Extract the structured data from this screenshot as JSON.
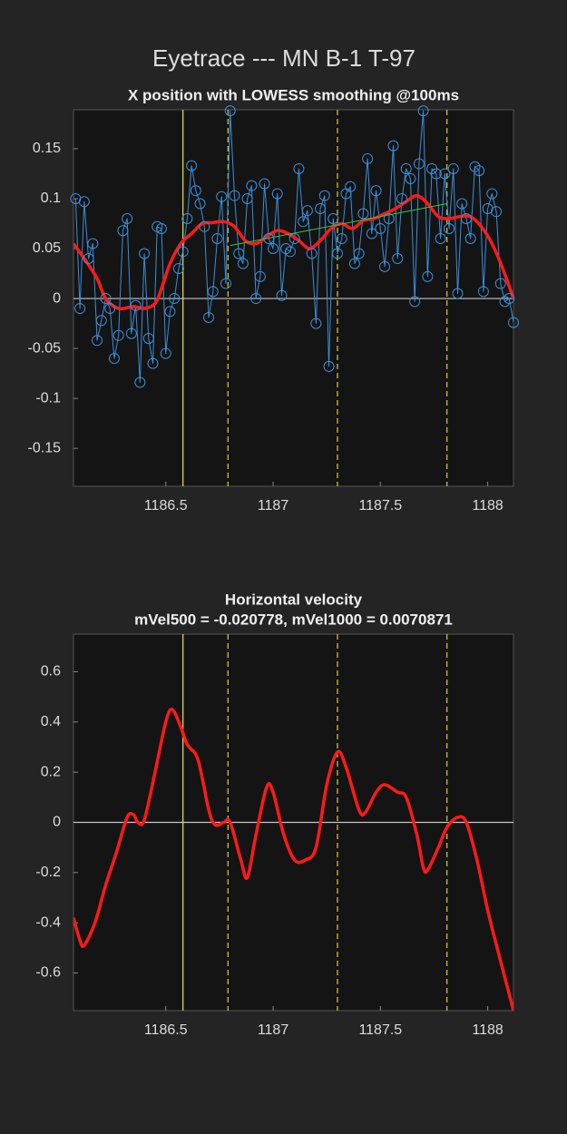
{
  "title": "Eyetrace --- MN B-1 T-97",
  "chart_data": [
    {
      "type": "line",
      "title": "X position with LOWESS smoothing @100ms",
      "xlim": [
        1186.07,
        1188.12
      ],
      "ylim": [
        -0.188,
        0.189
      ],
      "xticks": [
        1186.5,
        1187,
        1187.5,
        1188
      ],
      "yticks": [
        -0.15,
        -0.1,
        -0.05,
        0,
        0.05,
        0.1,
        0.15
      ],
      "hlines": [
        0
      ],
      "vlines": [
        {
          "value": 1186.58,
          "style": "solid",
          "color": "#d8d850"
        },
        {
          "value": 1186.79,
          "style": "dashed",
          "color": "#c8c040"
        },
        {
          "value": 1187.3,
          "style": "dashed",
          "color": "#c8c040"
        },
        {
          "value": 1187.81,
          "style": "dashed",
          "color": "#c8c040"
        }
      ],
      "series": [
        {
          "color": "#3a8fd9",
          "marker": "circle",
          "x": [
            1186.08,
            1186.1,
            1186.12,
            1186.14,
            1186.16,
            1186.18,
            1186.2,
            1186.22,
            1186.24,
            1186.26,
            1186.28,
            1186.3,
            1186.32,
            1186.34,
            1186.36,
            1186.38,
            1186.4,
            1186.42,
            1186.44,
            1186.46,
            1186.48,
            1186.5,
            1186.52,
            1186.54,
            1186.56,
            1186.58,
            1186.6,
            1186.62,
            1186.64,
            1186.66,
            1186.68,
            1186.7,
            1186.72,
            1186.74,
            1186.76,
            1186.78,
            1186.8,
            1186.82,
            1186.84,
            1186.86,
            1186.88,
            1186.9,
            1186.92,
            1186.94,
            1186.96,
            1186.98,
            1187,
            1187.02,
            1187.04,
            1187.06,
            1187.08,
            1187.1,
            1187.12,
            1187.14,
            1187.16,
            1187.18,
            1187.2,
            1187.22,
            1187.24,
            1187.26,
            1187.28,
            1187.3,
            1187.32,
            1187.34,
            1187.36,
            1187.38,
            1187.4,
            1187.42,
            1187.44,
            1187.46,
            1187.48,
            1187.5,
            1187.52,
            1187.54,
            1187.56,
            1187.58,
            1187.6,
            1187.62,
            1187.64,
            1187.66,
            1187.68,
            1187.7,
            1187.72,
            1187.74,
            1187.76,
            1187.78,
            1187.8,
            1187.82,
            1187.84,
            1187.86,
            1187.88,
            1187.9,
            1187.92,
            1187.94,
            1187.96,
            1187.98,
            1188,
            1188.02,
            1188.04,
            1188.06,
            1188.08,
            1188.1,
            1188.12
          ],
          "values": [
            0.1,
            -0.01,
            0.097,
            0.04,
            0.055,
            -0.042,
            -0.022,
            0,
            -0.01,
            -0.06,
            -0.037,
            0.068,
            0.08,
            -0.035,
            -0.007,
            -0.084,
            0.045,
            -0.04,
            -0.065,
            0.072,
            0.07,
            -0.055,
            -0.013,
            0,
            0.03,
            0.047,
            0.08,
            0.133,
            0.108,
            0.095,
            0.072,
            -0.019,
            0.007,
            0.06,
            0.102,
            0.015,
            0.188,
            0.103,
            0.045,
            0.035,
            0.1,
            0.113,
            0,
            0.022,
            0.115,
            0.06,
            0.05,
            0.105,
            0.003,
            0.05,
            0.047,
            0.06,
            0.13,
            0.077,
            0.088,
            0.045,
            -0.025,
            0.09,
            0.103,
            -0.068,
            0.08,
            0.045,
            0.06,
            0.105,
            0.112,
            0.035,
            0.045,
            0.085,
            0.14,
            0.065,
            0.108,
            0.07,
            0.032,
            0.08,
            0.153,
            0.04,
            0.1,
            0.13,
            0.12,
            -0.003,
            0.135,
            0.188,
            0.022,
            0.13,
            0.125,
            0.06,
            0.125,
            0.07,
            0.13,
            0.005,
            0.095,
            0.08,
            0.06,
            0.132,
            0.128,
            0.007,
            0.09,
            0.105,
            0.087,
            0.015,
            -0.003,
            0,
            -0.024
          ]
        },
        {
          "color": "#ff1a1a",
          "width": 3.5,
          "smooth": true,
          "x": [
            1186.07,
            1186.12,
            1186.18,
            1186.22,
            1186.28,
            1186.35,
            1186.4,
            1186.45,
            1186.48,
            1186.52,
            1186.57,
            1186.62,
            1186.67,
            1186.72,
            1186.77,
            1186.82,
            1186.87,
            1186.92,
            1186.97,
            1187.02,
            1187.07,
            1187.12,
            1187.17,
            1187.22,
            1187.27,
            1187.32,
            1187.37,
            1187.42,
            1187.47,
            1187.52,
            1187.57,
            1187.62,
            1187.67,
            1187.72,
            1187.77,
            1187.82,
            1187.87,
            1187.92,
            1187.97,
            1188.02,
            1188.07,
            1188.12
          ],
          "values": [
            0.055,
            0.04,
            0.02,
            0,
            -0.01,
            -0.008,
            -0.01,
            -0.005,
            0.01,
            0.035,
            0.055,
            0.065,
            0.075,
            0.076,
            0.077,
            0.072,
            0.058,
            0.055,
            0.062,
            0.068,
            0.065,
            0.058,
            0.05,
            0.058,
            0.07,
            0.075,
            0.07,
            0.078,
            0.08,
            0.085,
            0.09,
            0.097,
            0.103,
            0.095,
            0.082,
            0.08,
            0.082,
            0.082,
            0.072,
            0.055,
            0.03,
            0
          ]
        },
        {
          "color": "#2ecc40",
          "x": [
            1186.8,
            1187.81
          ],
          "values": [
            0.053,
            0.095
          ]
        }
      ]
    },
    {
      "type": "line",
      "title": "Horizontal velocity",
      "subtitle": "mVel500 = -0.020778, mVel1000 = 0.0070871",
      "xlim": [
        1186.07,
        1188.12
      ],
      "ylim": [
        -0.75,
        0.75
      ],
      "xticks": [
        1186.5,
        1187,
        1187.5,
        1188
      ],
      "yticks": [
        -0.6,
        -0.4,
        -0.2,
        0,
        0.2,
        0.4,
        0.6
      ],
      "hlines": [
        0
      ],
      "vlines": [
        {
          "value": 1186.58,
          "style": "solid",
          "color": "#d8d850"
        },
        {
          "value": 1186.79,
          "style": "dashed",
          "color": "#c8c040"
        },
        {
          "value": 1187.3,
          "style": "dashed",
          "color": "#c8c040"
        },
        {
          "value": 1187.81,
          "style": "dashed",
          "color": "#c8c040"
        }
      ],
      "series": [
        {
          "color": "#ff1a1a",
          "width": 3.5,
          "smooth": true,
          "x": [
            1186.07,
            1186.1,
            1186.12,
            1186.17,
            1186.22,
            1186.27,
            1186.32,
            1186.35,
            1186.37,
            1186.4,
            1186.45,
            1186.5,
            1186.53,
            1186.57,
            1186.6,
            1186.65,
            1186.7,
            1186.73,
            1186.77,
            1186.8,
            1186.85,
            1186.88,
            1186.92,
            1186.97,
            1187,
            1187.05,
            1187.1,
            1187.15,
            1187.2,
            1187.25,
            1187.3,
            1187.34,
            1187.4,
            1187.43,
            1187.48,
            1187.52,
            1187.58,
            1187.62,
            1187.67,
            1187.7,
            1187.72,
            1187.77,
            1187.81,
            1187.86,
            1187.9,
            1187.95,
            1188,
            1188.05,
            1188.12
          ],
          "values": [
            -0.38,
            -0.47,
            -0.49,
            -0.4,
            -0.25,
            -0.12,
            0.02,
            0.03,
            0,
            0.01,
            0.2,
            0.4,
            0.45,
            0.38,
            0.31,
            0.25,
            0.05,
            -0.01,
            0,
            0,
            -0.15,
            -0.22,
            -0.05,
            0.14,
            0.12,
            -0.05,
            -0.15,
            -0.15,
            -0.1,
            0.15,
            0.28,
            0.22,
            0.05,
            0.04,
            0.12,
            0.15,
            0.12,
            0.1,
            -0.05,
            -0.18,
            -0.19,
            -0.1,
            -0.02,
            0.02,
            0,
            -0.15,
            -0.35,
            -0.52,
            -0.75
          ]
        }
      ]
    }
  ]
}
